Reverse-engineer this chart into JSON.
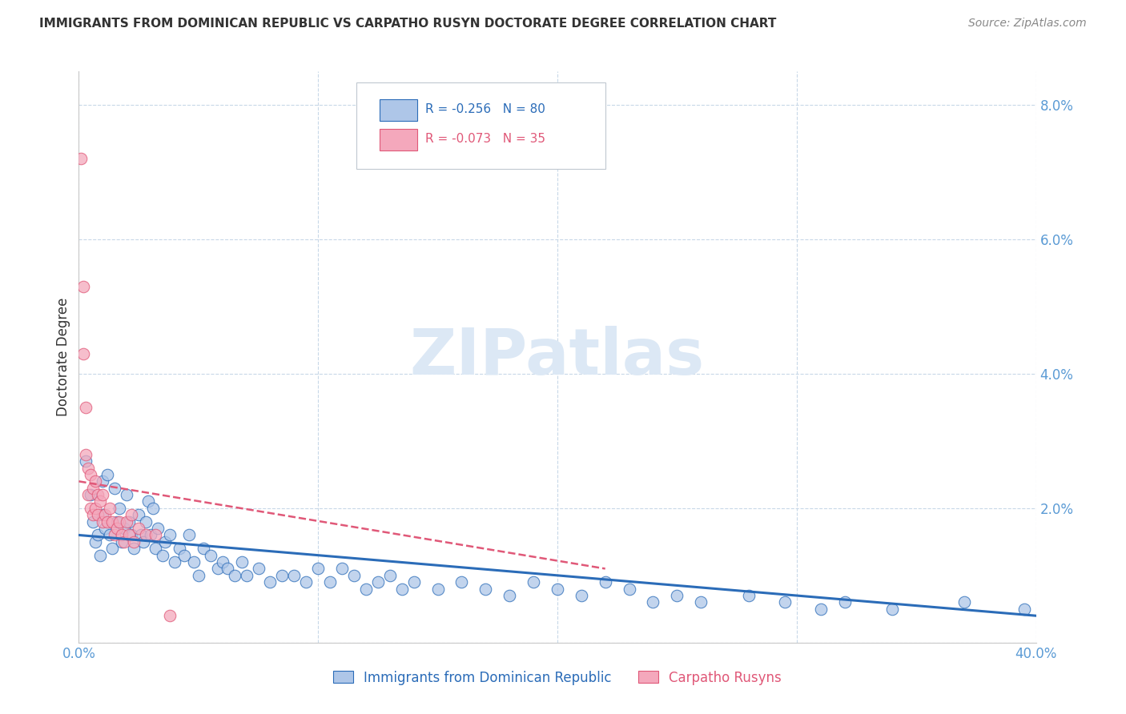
{
  "title": "IMMIGRANTS FROM DOMINICAN REPUBLIC VS CARPATHO RUSYN DOCTORATE DEGREE CORRELATION CHART",
  "source": "Source: ZipAtlas.com",
  "ylabel": "Doctorate Degree",
  "xlim": [
    0.0,
    0.4
  ],
  "ylim": [
    0.0,
    0.085
  ],
  "legend_label_blue": "Immigrants from Dominican Republic",
  "legend_label_pink": "Carpatho Rusyns",
  "blue_color": "#aec6e8",
  "pink_color": "#f4a8bc",
  "blue_line_color": "#2b6cb8",
  "pink_line_color": "#e05878",
  "watermark": "ZIPatlas",
  "watermark_color": "#dce8f5",
  "title_color": "#333333",
  "axis_color": "#5b9bd5",
  "grid_color": "#c8d8e8",
  "background_color": "#ffffff",
  "blue_scatter_x": [
    0.003,
    0.005,
    0.006,
    0.007,
    0.008,
    0.009,
    0.01,
    0.01,
    0.011,
    0.012,
    0.013,
    0.014,
    0.015,
    0.016,
    0.017,
    0.018,
    0.019,
    0.02,
    0.021,
    0.022,
    0.023,
    0.025,
    0.026,
    0.027,
    0.028,
    0.029,
    0.03,
    0.031,
    0.032,
    0.033,
    0.035,
    0.036,
    0.038,
    0.04,
    0.042,
    0.044,
    0.046,
    0.048,
    0.05,
    0.052,
    0.055,
    0.058,
    0.06,
    0.062,
    0.065,
    0.068,
    0.07,
    0.075,
    0.08,
    0.085,
    0.09,
    0.095,
    0.1,
    0.105,
    0.11,
    0.115,
    0.12,
    0.125,
    0.13,
    0.135,
    0.14,
    0.15,
    0.16,
    0.17,
    0.18,
    0.19,
    0.2,
    0.21,
    0.22,
    0.23,
    0.24,
    0.25,
    0.26,
    0.28,
    0.295,
    0.31,
    0.32,
    0.34,
    0.37,
    0.395
  ],
  "blue_scatter_y": [
    0.027,
    0.022,
    0.018,
    0.015,
    0.016,
    0.013,
    0.024,
    0.019,
    0.017,
    0.025,
    0.016,
    0.014,
    0.023,
    0.018,
    0.02,
    0.015,
    0.017,
    0.022,
    0.018,
    0.016,
    0.014,
    0.019,
    0.016,
    0.015,
    0.018,
    0.021,
    0.016,
    0.02,
    0.014,
    0.017,
    0.013,
    0.015,
    0.016,
    0.012,
    0.014,
    0.013,
    0.016,
    0.012,
    0.01,
    0.014,
    0.013,
    0.011,
    0.012,
    0.011,
    0.01,
    0.012,
    0.01,
    0.011,
    0.009,
    0.01,
    0.01,
    0.009,
    0.011,
    0.009,
    0.011,
    0.01,
    0.008,
    0.009,
    0.01,
    0.008,
    0.009,
    0.008,
    0.009,
    0.008,
    0.007,
    0.009,
    0.008,
    0.007,
    0.009,
    0.008,
    0.006,
    0.007,
    0.006,
    0.007,
    0.006,
    0.005,
    0.006,
    0.005,
    0.006,
    0.005
  ],
  "pink_scatter_x": [
    0.001,
    0.002,
    0.002,
    0.003,
    0.003,
    0.004,
    0.004,
    0.005,
    0.005,
    0.006,
    0.006,
    0.007,
    0.007,
    0.008,
    0.008,
    0.009,
    0.01,
    0.01,
    0.011,
    0.012,
    0.013,
    0.014,
    0.015,
    0.016,
    0.017,
    0.018,
    0.019,
    0.02,
    0.021,
    0.022,
    0.023,
    0.025,
    0.028,
    0.032,
    0.038
  ],
  "pink_scatter_y": [
    0.072,
    0.053,
    0.043,
    0.035,
    0.028,
    0.026,
    0.022,
    0.025,
    0.02,
    0.023,
    0.019,
    0.024,
    0.02,
    0.022,
    0.019,
    0.021,
    0.022,
    0.018,
    0.019,
    0.018,
    0.02,
    0.018,
    0.016,
    0.017,
    0.018,
    0.016,
    0.015,
    0.018,
    0.016,
    0.019,
    0.015,
    0.017,
    0.016,
    0.016,
    0.004
  ],
  "blue_trendline_x": [
    0.0,
    0.4
  ],
  "blue_trendline_y": [
    0.016,
    0.004
  ],
  "pink_trendline_x": [
    0.0,
    0.22
  ],
  "pink_trendline_y": [
    0.024,
    0.011
  ]
}
